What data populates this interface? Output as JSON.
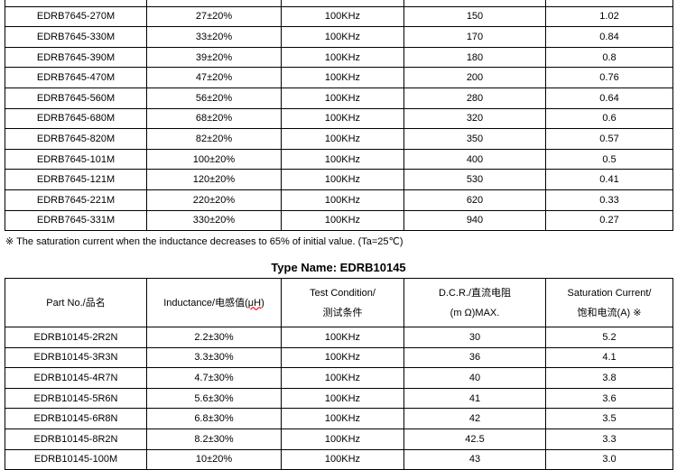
{
  "table1": {
    "rows": [
      [
        "",
        "",
        "",
        "",
        ""
      ],
      [
        "EDRB7645-270M",
        "27±20%",
        "100KHz",
        "150",
        "1.02"
      ],
      [
        "EDRB7645-330M",
        "33±20%",
        "100KHz",
        "170",
        "0.84"
      ],
      [
        "EDRB7645-390M",
        "39±20%",
        "100KHz",
        "180",
        "0.8"
      ],
      [
        "EDRB7645-470M",
        "47±20%",
        "100KHz",
        "200",
        "0.76"
      ],
      [
        "EDRB7645-560M",
        "56±20%",
        "100KHz",
        "280",
        "0.64"
      ],
      [
        "EDRB7645-680M",
        "68±20%",
        "100KHz",
        "320",
        "0.6"
      ],
      [
        "EDRB7645-820M",
        "82±20%",
        "100KHz",
        "350",
        "0.57"
      ],
      [
        "EDRB7645-101M",
        "100±20%",
        "100KHz",
        "400",
        "0.5"
      ],
      [
        "EDRB7645-121M",
        "120±20%",
        "100KHz",
        "530",
        "0.41"
      ],
      [
        "EDRB7645-221M",
        "220±20%",
        "100KHz",
        "620",
        "0.33"
      ],
      [
        "EDRB7645-331M",
        "330±20%",
        "100KHz",
        "940",
        "0.27"
      ]
    ]
  },
  "note": "※  The saturation current when the inductance decreases to 65% of initial value. (Ta=25℃)",
  "table2": {
    "title": "Type Name: EDRB10145",
    "headers": {
      "part": "Part No./品名",
      "ind_a": "Inductance/电感值(",
      "ind_u": "μH",
      "ind_b": ")",
      "test1": "Test Condition/",
      "test2": "测试条件",
      "dcr1": "D.C.R./直流电阻",
      "dcr2": "(m Ω)MAX.",
      "sat1": "Saturation Current/",
      "sat2": "饱和电流(A)  ※"
    },
    "rows": [
      [
        "EDRB10145-2R2N",
        "2.2±30%",
        "100KHz",
        "30",
        "5.2"
      ],
      [
        "EDRB10145-3R3N",
        "3.3±30%",
        "100KHz",
        "36",
        "4.1"
      ],
      [
        "EDRB10145-4R7N",
        "4.7±30%",
        "100KHz",
        "40",
        "3.8"
      ],
      [
        "EDRB10145-5R6N",
        "5.6±30%",
        "100KHz",
        "41",
        "3.6"
      ],
      [
        "EDRB10145-6R8N",
        "6.8±30%",
        "100KHz",
        "42",
        "3.5"
      ],
      [
        "EDRB10145-8R2N",
        "8.2±30%",
        "100KHz",
        "42.5",
        "3.3"
      ],
      [
        "EDRB10145-100M",
        "10±20%",
        "100KHz",
        "43",
        "3.0"
      ]
    ]
  }
}
